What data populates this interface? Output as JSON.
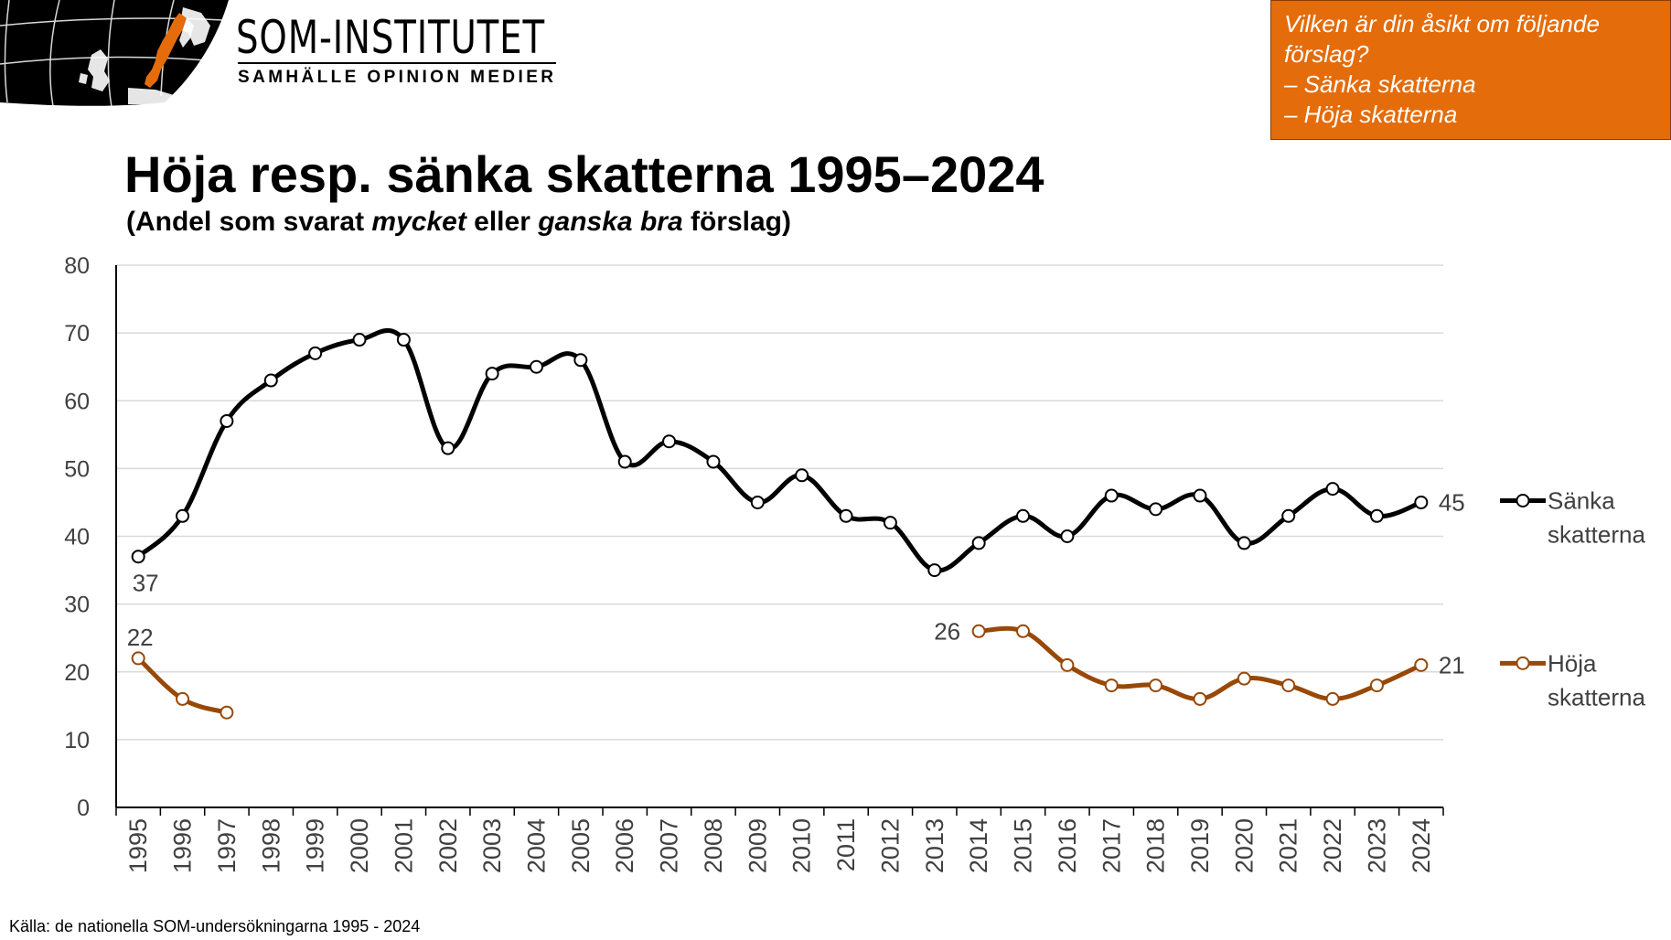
{
  "logo": {
    "name": "SOM-INSTITUTET",
    "tagline": "SAMHÄLLE OPINION MEDIER",
    "colors": {
      "map_background": "#000000",
      "sweden": "#E46C0A"
    }
  },
  "question_box": {
    "lines": [
      "Vilken är din åsikt om följande",
      "förslag?",
      "– Sänka skatterna",
      "– Höja skatterna"
    ],
    "background_color": "#E46C0A"
  },
  "title": "Höja resp. sänka skatterna 1995–2024",
  "subtitle": {
    "part1": "(Andel som svarat ",
    "italic1": "mycket",
    "part2": " eller ",
    "italic2": "ganska bra",
    "part3": " förslag)"
  },
  "source": "Källa: de nationella SOM-undersökningarna 1995 - 2024",
  "chart_data": {
    "type": "line",
    "x": [
      1995,
      1996,
      1997,
      1998,
      1999,
      2000,
      2001,
      2002,
      2003,
      2004,
      2005,
      2006,
      2007,
      2008,
      2009,
      2010,
      2011,
      2012,
      2013,
      2014,
      2015,
      2016,
      2017,
      2018,
      2019,
      2020,
      2021,
      2022,
      2023,
      2024
    ],
    "ylim": [
      0,
      80
    ],
    "yticks": [
      0,
      10,
      20,
      30,
      40,
      50,
      60,
      70,
      80
    ],
    "grid": "horizontal",
    "legend_position": "right",
    "series": [
      {
        "name": "Sänka skatterna",
        "legend_lines": [
          "Sänka",
          "skatterna"
        ],
        "color": "#000000",
        "values": [
          37,
          43,
          57,
          63,
          67,
          69,
          69,
          53,
          64,
          65,
          66,
          51,
          54,
          51,
          45,
          49,
          43,
          42,
          35,
          39,
          43,
          40,
          46,
          44,
          46,
          39,
          43,
          47,
          43,
          45
        ],
        "labels": [
          {
            "x": 1995,
            "text": "37",
            "position": "below"
          },
          {
            "x": 2024,
            "text": "45",
            "position": "right"
          }
        ]
      },
      {
        "name": "Höja skatterna",
        "legend_lines": [
          "Höja",
          "skatterna"
        ],
        "color": "#984807",
        "values": [
          22,
          16,
          14,
          null,
          null,
          null,
          null,
          null,
          null,
          null,
          null,
          null,
          null,
          null,
          null,
          null,
          null,
          null,
          null,
          26,
          26,
          21,
          18,
          18,
          16,
          19,
          18,
          16,
          18,
          21
        ],
        "labels": [
          {
            "x": 1995,
            "text": "22",
            "position": "above"
          },
          {
            "x": 2014,
            "text": "26",
            "position": "left"
          },
          {
            "x": 2024,
            "text": "21",
            "position": "right"
          }
        ]
      }
    ]
  }
}
